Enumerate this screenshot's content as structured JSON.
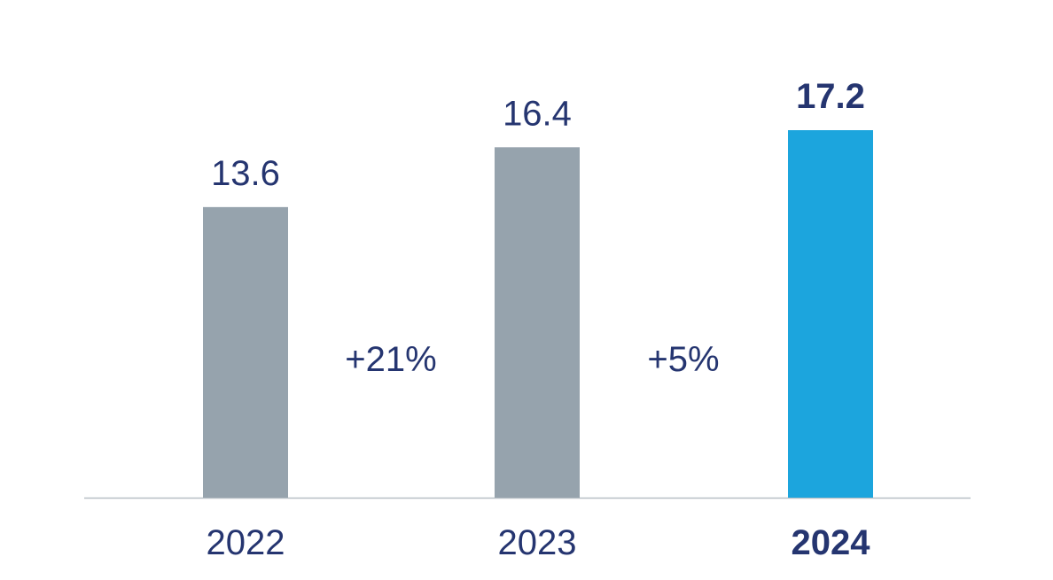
{
  "colors": {
    "past_bar": "#96a3ad",
    "highlight_bar": "#1ca5dd",
    "text": "#253570",
    "axis": "#b8bfc6"
  },
  "chart_data": {
    "type": "bar",
    "categories": [
      "2022",
      "2023",
      "2024"
    ],
    "values": [
      13.6,
      16.4,
      17.2
    ],
    "value_labels": [
      "13.6",
      "16.4",
      "17.2"
    ],
    "highlight_index": 2,
    "growth_annotations": [
      {
        "between": [
          "2022",
          "2023"
        ],
        "label": "+21%"
      },
      {
        "between": [
          "2023",
          "2024"
        ],
        "label": "+5%"
      }
    ],
    "title": "",
    "xlabel": "",
    "ylabel": "",
    "grid": false,
    "legend": "none"
  }
}
